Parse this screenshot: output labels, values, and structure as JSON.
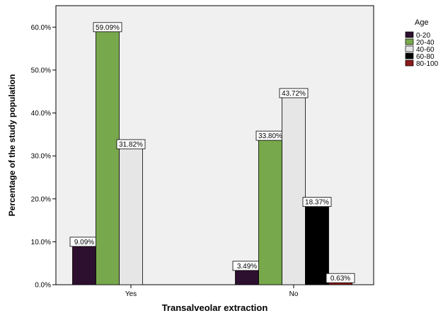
{
  "chart_data": {
    "type": "bar",
    "xlabel": "Transalveolar extraction",
    "ylabel": "Percentage of the study population",
    "categories": [
      "Yes",
      "No"
    ],
    "ylim": [
      0,
      65
    ],
    "yticks": [
      0,
      10,
      20,
      30,
      40,
      50,
      60
    ],
    "ytick_labels": [
      "0.0%",
      "10.0%",
      "20.0%",
      "30.0%",
      "40.0%",
      "50.0%",
      "60.0%"
    ],
    "legend_title": "Age",
    "legend_position": "top-right, outside plot area",
    "grid": false,
    "plot_background": "#f0f0f0",
    "series": [
      {
        "name": "0-20",
        "color": "#2d0f2f",
        "values": [
          9.09,
          3.49
        ],
        "labels": [
          "9.09%",
          "3.49%"
        ]
      },
      {
        "name": "20-40",
        "color": "#78a84c",
        "values": [
          59.09,
          33.8
        ],
        "labels": [
          "59.09%",
          "33.80%"
        ]
      },
      {
        "name": "40-60",
        "color": "#e6e6e6",
        "values": [
          31.82,
          43.72
        ],
        "labels": [
          "31.82%",
          "43.72%"
        ]
      },
      {
        "name": "60-80",
        "color": "#000000",
        "values": [
          null,
          18.37
        ],
        "labels": [
          null,
          "18.37%"
        ]
      },
      {
        "name": "80-100",
        "color": "#8b1a1a",
        "values": [
          null,
          0.63
        ],
        "labels": [
          null,
          "0.63%"
        ]
      }
    ]
  }
}
